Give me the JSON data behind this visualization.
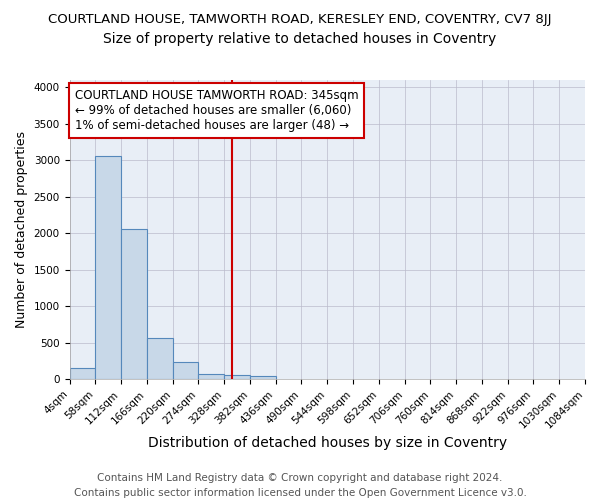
{
  "title_line1": "COURTLAND HOUSE, TAMWORTH ROAD, KERESLEY END, COVENTRY, CV7 8JJ",
  "title_line2": "Size of property relative to detached houses in Coventry",
  "xlabel": "Distribution of detached houses by size in Coventry",
  "ylabel": "Number of detached properties",
  "footer_line1": "Contains HM Land Registry data © Crown copyright and database right 2024.",
  "footer_line2": "Contains public sector information licensed under the Open Government Licence v3.0.",
  "annotation_line1": "COURTLAND HOUSE TAMWORTH ROAD: 345sqm",
  "annotation_line2": "← 99% of detached houses are smaller (6,060)",
  "annotation_line3": "1% of semi-detached houses are larger (48) →",
  "bar_edges": [
    4,
    58,
    112,
    166,
    220,
    274,
    328,
    382,
    436,
    490,
    544,
    598,
    652,
    706,
    760,
    814,
    868,
    922,
    976,
    1030,
    1084
  ],
  "bar_heights": [
    150,
    3060,
    2060,
    560,
    230,
    75,
    60,
    50,
    0,
    0,
    0,
    0,
    0,
    0,
    0,
    0,
    0,
    0,
    0,
    0
  ],
  "bar_color": "#c8d8e8",
  "bar_edge_color": "#5588bb",
  "vline_x": 345,
  "vline_color": "#cc0000",
  "ylim": [
    0,
    4100
  ],
  "yticks": [
    0,
    500,
    1000,
    1500,
    2000,
    2500,
    3000,
    3500,
    4000
  ],
  "background_color": "#e8eef6",
  "grid_color": "#bbbbcc",
  "title1_fontsize": 9.5,
  "title2_fontsize": 10,
  "xlabel_fontsize": 10,
  "ylabel_fontsize": 9,
  "tick_label_fontsize": 7.5,
  "annotation_fontsize": 8.5,
  "footer_fontsize": 7.5
}
